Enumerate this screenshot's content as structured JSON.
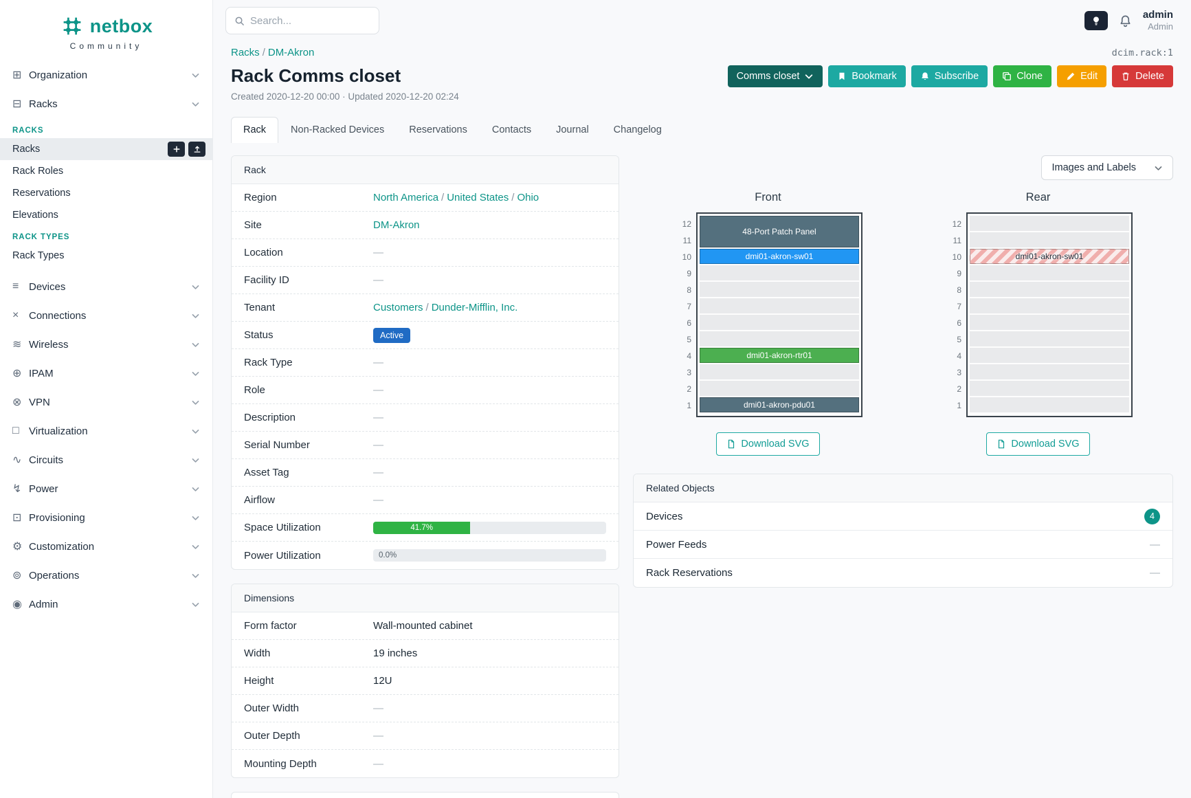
{
  "colors": {
    "brand_teal": "#0d9488",
    "link_teal": "#0d9488",
    "button_teal": "#1da9a2",
    "button_dark_teal": "#11635c",
    "button_green": "#2fb344",
    "button_orange": "#f59f00",
    "button_red": "#d63939",
    "status_badge_blue": "#206bc4",
    "device_blue": "#2196f3",
    "device_green": "#4caf50",
    "device_slate": "#54707e",
    "progress_green": "#2fb344",
    "count_badge_teal": "#0d9488"
  },
  "ui": {
    "sep": "/"
  },
  "topbar": {
    "search_placeholder": "Search...",
    "user_name": "admin",
    "user_role": "Admin"
  },
  "sidebar": {
    "brand_name": "netbox",
    "brand_edition": "Community",
    "racks_section_header": "RACKS",
    "rack_types_section_header": "RACK TYPES",
    "items": [
      {
        "label": "Organization"
      },
      {
        "label": "Racks"
      },
      {
        "label": "Devices"
      },
      {
        "label": "Connections"
      },
      {
        "label": "Wireless"
      },
      {
        "label": "IPAM"
      },
      {
        "label": "VPN"
      },
      {
        "label": "Virtualization"
      },
      {
        "label": "Circuits"
      },
      {
        "label": "Power"
      },
      {
        "label": "Provisioning"
      },
      {
        "label": "Customization"
      },
      {
        "label": "Operations"
      },
      {
        "label": "Admin"
      }
    ],
    "racks_submenu": [
      {
        "label": "Racks",
        "active": true
      },
      {
        "label": "Rack Roles"
      },
      {
        "label": "Reservations"
      },
      {
        "label": "Elevations"
      }
    ],
    "rack_types_submenu": [
      {
        "label": "Rack Types"
      }
    ]
  },
  "breadcrumb": {
    "items": [
      "Racks",
      "DM-Akron"
    ]
  },
  "object_ref": "dcim.rack:1",
  "page": {
    "title": "Rack Comms closet",
    "meta": "Created 2020-12-20 00:00 · Updated 2020-12-20 02:24"
  },
  "actions": {
    "config": "Comms closet",
    "bookmark": "Bookmark",
    "subscribe": "Subscribe",
    "clone": "Clone",
    "edit": "Edit",
    "delete": "Delete"
  },
  "tabs": [
    {
      "label": "Rack",
      "active": true
    },
    {
      "label": "Non-Racked Devices"
    },
    {
      "label": "Reservations"
    },
    {
      "label": "Contacts"
    },
    {
      "label": "Journal"
    },
    {
      "label": "Changelog"
    }
  ],
  "rack_info": {
    "title": "Rack",
    "region_label": "Region",
    "region_links": [
      "North America",
      "United States",
      "Ohio"
    ],
    "site_label": "Site",
    "site_link": "DM-Akron",
    "location_label": "Location",
    "location_value": "—",
    "facility_label": "Facility ID",
    "facility_value": "—",
    "tenant_label": "Tenant",
    "tenant_links": [
      "Customers",
      "Dunder-Mifflin, Inc."
    ],
    "status_label": "Status",
    "status_value": "Active",
    "rack_type_label": "Rack Type",
    "rack_type_value": "—",
    "role_label": "Role",
    "role_value": "—",
    "description_label": "Description",
    "description_value": "—",
    "serial_label": "Serial Number",
    "serial_value": "—",
    "asset_label": "Asset Tag",
    "asset_value": "—",
    "airflow_label": "Airflow",
    "airflow_value": "—",
    "space_label": "Space Utilization",
    "space_percent": 41.7,
    "space_text": "41.7%",
    "power_label": "Power Utilization",
    "power_percent": 0,
    "power_text": "0.0%"
  },
  "dimensions": {
    "title": "Dimensions",
    "rows": [
      {
        "label": "Form factor",
        "value": "Wall-mounted cabinet"
      },
      {
        "label": "Width",
        "value": "19 inches"
      },
      {
        "label": "Height",
        "value": "12U"
      },
      {
        "label": "Outer Width",
        "value": "—"
      },
      {
        "label": "Outer Depth",
        "value": "—"
      },
      {
        "label": "Mounting Depth",
        "value": "—"
      }
    ]
  },
  "elevations": {
    "toggle_label": "Images and Labels",
    "front_title": "Front",
    "rear_title": "Rear",
    "download_label": "Download SVG",
    "unit_numbers": [
      "12",
      "11",
      "10",
      "9",
      "8",
      "7",
      "6",
      "5",
      "4",
      "3",
      "2",
      "1"
    ],
    "front_devices": {
      "patch_panel": "48-Port Patch Panel",
      "switch": "dmi01-akron-sw01",
      "router": "dmi01-akron-rtr01",
      "pdu": "dmi01-akron-pdu01"
    },
    "rear_devices": {
      "switch": "dmi01-akron-sw01"
    }
  },
  "related": {
    "title": "Related Objects",
    "rows": [
      {
        "label": "Devices",
        "count": "4"
      },
      {
        "label": "Power Feeds",
        "value": "—"
      },
      {
        "label": "Rack Reservations",
        "value": "—"
      }
    ]
  }
}
